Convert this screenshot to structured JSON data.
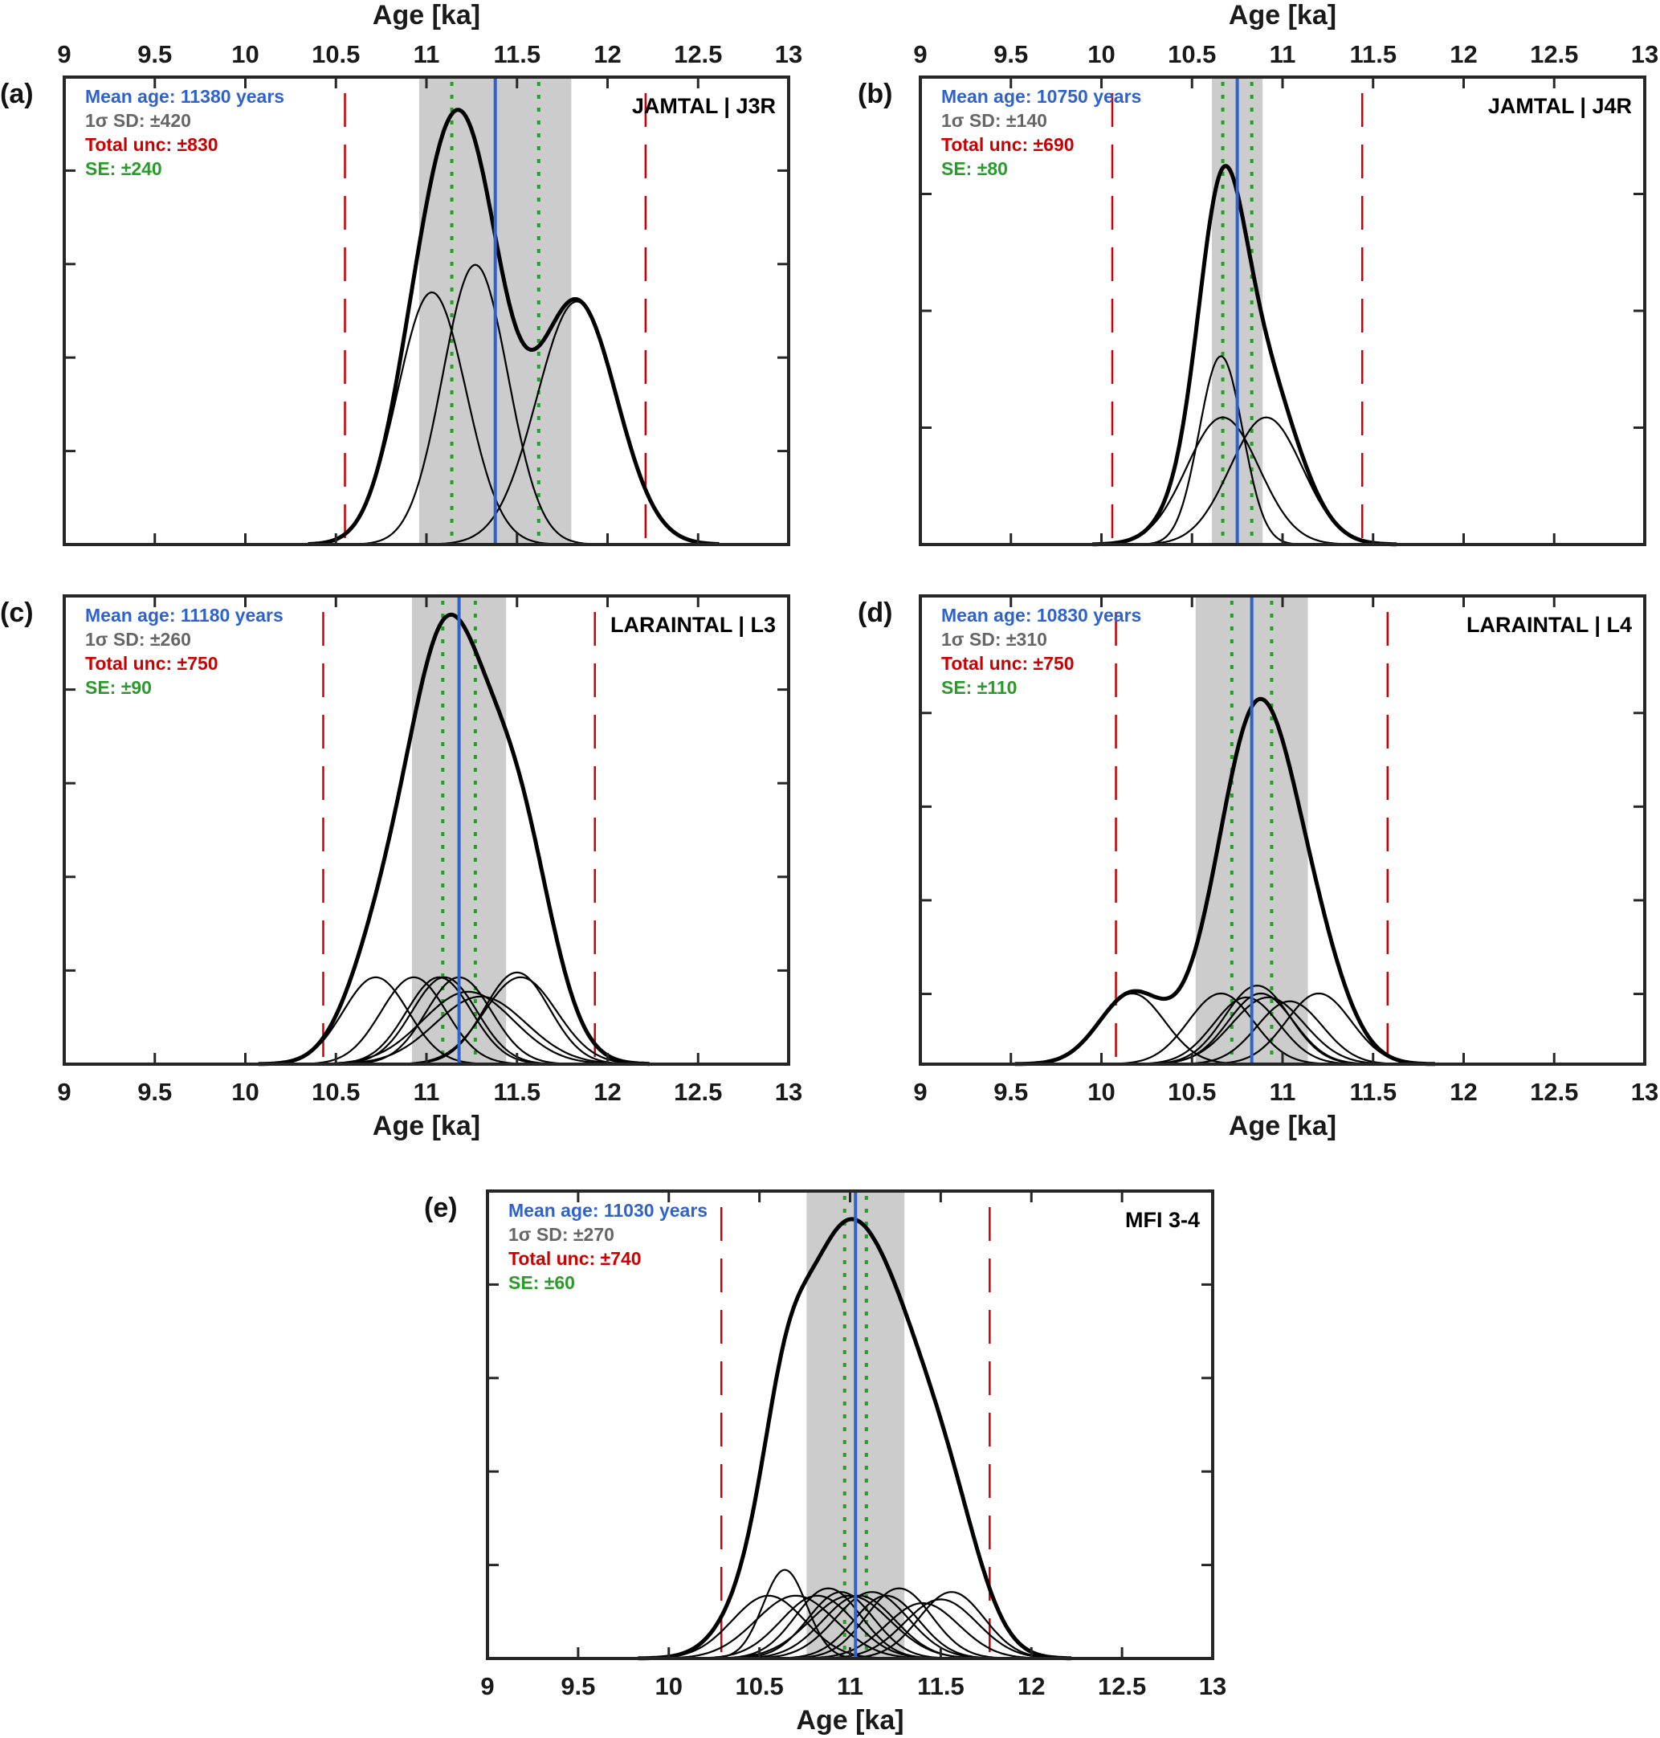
{
  "figure": {
    "colors": {
      "mean": "#2f62cc",
      "sd": "#666666",
      "total": "#cc0000",
      "se": "#2a9a2a",
      "band": "#cccccc",
      "curve": "#000000"
    }
  },
  "chart_data": [
    {
      "type": "line",
      "panel": "(a)",
      "site": "JAMTAL | J3R",
      "xlabel": "Age [ka]",
      "xlabel_position": "top",
      "xlim": [
        9,
        13
      ],
      "xticks": [
        9,
        9.5,
        10,
        10.5,
        11,
        11.5,
        12,
        12.5,
        13
      ],
      "xtick_labels": [
        "9",
        "9.5",
        "10",
        "10.5",
        "11",
        "11.5",
        "12",
        "12.5",
        "13"
      ],
      "ylim": [
        0,
        1.0
      ],
      "yticks": [
        0.2,
        0.4,
        0.6,
        0.8
      ],
      "stats": {
        "mean_label": "Mean age: 11380 years",
        "sd_label": "1σ SD: ±420",
        "total_label": "Total unc: ±830",
        "se_label": "SE: ±240"
      },
      "mean_ka": 11.38,
      "sd_ka": 0.42,
      "total_ka": 0.83,
      "se_ka": 0.24,
      "components": [
        {
          "mu": 11.03,
          "sigma": 0.19,
          "amp": 0.55
        },
        {
          "mu": 11.27,
          "sigma": 0.18,
          "amp": 0.61
        },
        {
          "mu": 11.83,
          "sigma": 0.22,
          "amp": 0.53
        }
      ],
      "sum_curve": {
        "peak_x": 11.17,
        "peak_y": 0.93
      }
    },
    {
      "type": "line",
      "panel": "(b)",
      "site": "JAMTAL | J4R",
      "xlabel": "Age [ka]",
      "xlabel_position": "top",
      "xlim": [
        9,
        13
      ],
      "xticks": [
        9,
        9.5,
        10,
        10.5,
        11,
        11.5,
        12,
        12.5,
        13
      ],
      "xtick_labels": [
        "9",
        "9.5",
        "10",
        "10.5",
        "11",
        "11.5",
        "12",
        "12.5",
        "13"
      ],
      "ylim": [
        0,
        1.0
      ],
      "yticks": [
        0.25,
        0.5,
        0.75
      ],
      "stats": {
        "mean_label": "Mean age: 10750 years",
        "sd_label": "1σ SD: ±140",
        "total_label": "Total unc: ±690",
        "se_label": "SE: ±80"
      },
      "mean_ka": 10.75,
      "sd_ka": 0.14,
      "total_ka": 0.69,
      "se_ka": 0.08,
      "components": [
        {
          "mu": 10.66,
          "sigma": 0.12,
          "amp": 0.4
        },
        {
          "mu": 10.67,
          "sigma": 0.2,
          "amp": 0.27
        },
        {
          "mu": 10.91,
          "sigma": 0.2,
          "amp": 0.27
        }
      ],
      "sum_curve": {
        "peak_x": 10.69,
        "peak_y": 0.81
      }
    },
    {
      "type": "line",
      "panel": "(c)",
      "site": "LARAINTAL | L3",
      "xlabel": "Age [ka]",
      "xlabel_position": "bottom",
      "xlim": [
        9,
        13
      ],
      "xticks": [
        9,
        9.5,
        10,
        10.5,
        11,
        11.5,
        12,
        12.5,
        13
      ],
      "xtick_labels": [
        "9",
        "9.5",
        "10",
        "10.5",
        "11",
        "11.5",
        "12",
        "12.5",
        "13"
      ],
      "ylim": [
        0,
        1.0
      ],
      "yticks": [
        0.2,
        0.4,
        0.6,
        0.8
      ],
      "stats": {
        "mean_label": "Mean age: 11180 years",
        "sd_label": "1σ SD: ±260",
        "total_label": "Total unc: ±750",
        "se_label": "SE: ±90"
      },
      "mean_ka": 11.18,
      "sd_ka": 0.26,
      "total_ka": 0.75,
      "se_ka": 0.09,
      "components": [
        {
          "mu": 10.72,
          "sigma": 0.18,
          "amp": 0.18
        },
        {
          "mu": 10.93,
          "sigma": 0.18,
          "amp": 0.18
        },
        {
          "mu": 11.07,
          "sigma": 0.18,
          "amp": 0.18
        },
        {
          "mu": 11.1,
          "sigma": 0.18,
          "amp": 0.18
        },
        {
          "mu": 11.18,
          "sigma": 0.18,
          "amp": 0.18
        },
        {
          "mu": 11.23,
          "sigma": 0.25,
          "amp": 0.15
        },
        {
          "mu": 11.3,
          "sigma": 0.25,
          "amp": 0.14
        },
        {
          "mu": 11.5,
          "sigma": 0.18,
          "amp": 0.19
        },
        {
          "mu": 11.52,
          "sigma": 0.2,
          "amp": 0.18
        }
      ],
      "sum_curve": {
        "peak_x": 11.17,
        "peak_y": 0.96
      }
    },
    {
      "type": "line",
      "panel": "(d)",
      "site": "LARAINTAL | L4",
      "xlabel": "Age [ka]",
      "xlabel_position": "bottom",
      "xlim": [
        9,
        13
      ],
      "xticks": [
        9,
        9.5,
        10,
        10.5,
        11,
        11.5,
        12,
        12.5,
        13
      ],
      "xtick_labels": [
        "9",
        "9.5",
        "10",
        "10.5",
        "11",
        "11.5",
        "12",
        "12.5",
        "13"
      ],
      "ylim": [
        0,
        1.0
      ],
      "yticks": [
        0.15,
        0.35,
        0.55,
        0.75
      ],
      "stats": {
        "mean_label": "Mean age: 10830 years",
        "sd_label": "1σ SD: ±310",
        "total_label": "Total unc: ±750",
        "se_label": "SE: ±110"
      },
      "mean_ka": 10.83,
      "sd_ka": 0.31,
      "total_ka": 0.75,
      "se_ka": 0.11,
      "components": [
        {
          "mu": 10.17,
          "sigma": 0.18,
          "amp": 0.18
        },
        {
          "mu": 10.66,
          "sigma": 0.18,
          "amp": 0.18
        },
        {
          "mu": 10.8,
          "sigma": 0.18,
          "amp": 0.17
        },
        {
          "mu": 10.86,
          "sigma": 0.18,
          "amp": 0.2
        },
        {
          "mu": 10.88,
          "sigma": 0.18,
          "amp": 0.18
        },
        {
          "mu": 10.92,
          "sigma": 0.2,
          "amp": 0.17
        },
        {
          "mu": 11.04,
          "sigma": 0.18,
          "amp": 0.16
        },
        {
          "mu": 11.2,
          "sigma": 0.18,
          "amp": 0.18
        }
      ],
      "sum_curve": {
        "peak_x": 10.9,
        "peak_y": 0.78
      }
    },
    {
      "type": "line",
      "panel": "(e)",
      "site": "MFI 3-4",
      "xlabel": "Age [ka]",
      "xlabel_position": "bottom",
      "xlim": [
        9,
        13
      ],
      "xticks": [
        9,
        9.5,
        10,
        10.5,
        11,
        11.5,
        12,
        12.5,
        13
      ],
      "xtick_labels": [
        "9",
        "9.5",
        "10",
        "10.5",
        "11",
        "11.5",
        "12",
        "12.5",
        "13"
      ],
      "ylim": [
        0,
        1.0
      ],
      "yticks": [
        0.2,
        0.4,
        0.6,
        0.8
      ],
      "stats": {
        "mean_label": "Mean age: 11030 years",
        "sd_label": "1σ SD: ±270",
        "total_label": "Total unc: ±740",
        "se_label": "SE: ±60"
      },
      "mean_ka": 11.03,
      "sd_ka": 0.27,
      "total_ka": 0.74,
      "se_ka": 0.06,
      "components": [
        {
          "mu": 10.64,
          "sigma": 0.12,
          "amp": 0.12
        },
        {
          "mu": 10.55,
          "sigma": 0.2,
          "amp": 0.085
        },
        {
          "mu": 10.7,
          "sigma": 0.22,
          "amp": 0.085
        },
        {
          "mu": 10.82,
          "sigma": 0.2,
          "amp": 0.085
        },
        {
          "mu": 10.88,
          "sigma": 0.18,
          "amp": 0.095
        },
        {
          "mu": 10.95,
          "sigma": 0.18,
          "amp": 0.09
        },
        {
          "mu": 11.0,
          "sigma": 0.22,
          "amp": 0.085
        },
        {
          "mu": 11.05,
          "sigma": 0.2,
          "amp": 0.085
        },
        {
          "mu": 11.12,
          "sigma": 0.2,
          "amp": 0.09
        },
        {
          "mu": 11.2,
          "sigma": 0.18,
          "amp": 0.085
        },
        {
          "mu": 11.27,
          "sigma": 0.18,
          "amp": 0.095
        },
        {
          "mu": 11.4,
          "sigma": 0.2,
          "amp": 0.075
        },
        {
          "mu": 11.5,
          "sigma": 0.2,
          "amp": 0.08
        },
        {
          "mu": 11.56,
          "sigma": 0.18,
          "amp": 0.09
        }
      ],
      "sum_curve": {
        "peak_x": 10.97,
        "peak_y": 0.94
      }
    }
  ]
}
